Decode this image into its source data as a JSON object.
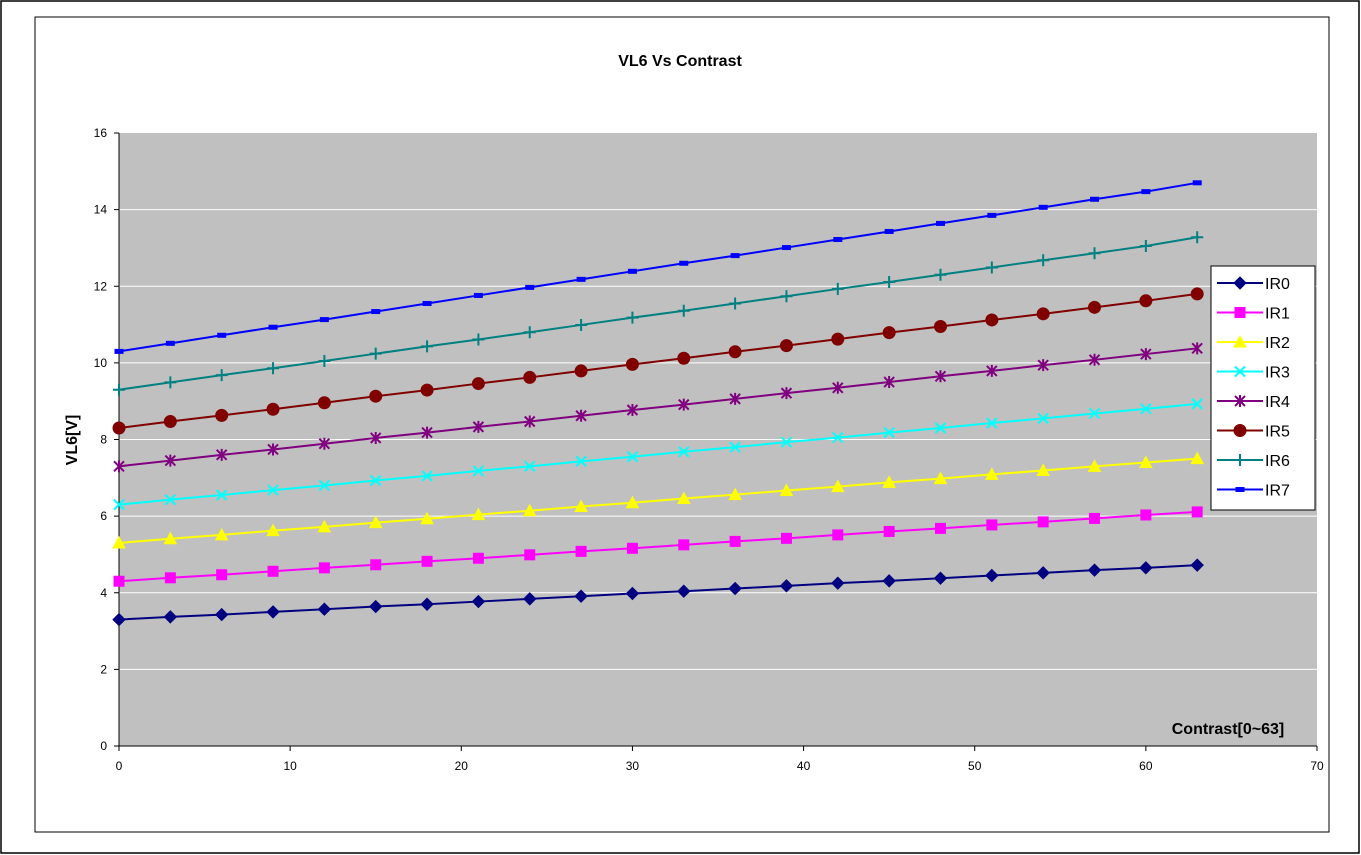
{
  "colors": {
    "plot_background": "#C0C0C0",
    "gridline": "#FFFFFF",
    "frame": "#000000"
  },
  "chart_data": {
    "type": "line",
    "title": "VL6 Vs Contrast",
    "xlabel": "Contrast[0~63]",
    "ylabel": "VL6[V]",
    "xlim": [
      0,
      70
    ],
    "ylim": [
      0,
      16
    ],
    "xticks": [
      0,
      10,
      20,
      30,
      40,
      50,
      60,
      70
    ],
    "yticks": [
      0,
      2,
      4,
      6,
      8,
      10,
      12,
      14,
      16
    ],
    "grid": "horizontal",
    "legend_position": "right",
    "x": [
      0,
      3,
      6,
      9,
      12,
      15,
      18,
      21,
      24,
      27,
      30,
      33,
      36,
      39,
      42,
      45,
      48,
      51,
      54,
      57,
      60,
      63
    ],
    "series": [
      {
        "name": "IR0",
        "color": "#000080",
        "marker": "diamond",
        "values": [
          3.3,
          3.37,
          3.43,
          3.5,
          3.57,
          3.64,
          3.7,
          3.77,
          3.84,
          3.91,
          3.98,
          4.04,
          4.11,
          4.18,
          4.25,
          4.31,
          4.38,
          4.45,
          4.52,
          4.59,
          4.65,
          4.72
        ]
      },
      {
        "name": "IR1",
        "color": "#FF00FF",
        "marker": "square",
        "values": [
          4.3,
          4.39,
          4.47,
          4.56,
          4.65,
          4.73,
          4.82,
          4.9,
          4.99,
          5.08,
          5.16,
          5.25,
          5.34,
          5.42,
          5.51,
          5.6,
          5.68,
          5.77,
          5.85,
          5.94,
          6.03,
          6.11
        ]
      },
      {
        "name": "IR2",
        "color": "#FFFF00",
        "marker": "triangle",
        "values": [
          5.3,
          5.41,
          5.51,
          5.62,
          5.72,
          5.83,
          5.93,
          6.04,
          6.14,
          6.25,
          6.35,
          6.46,
          6.56,
          6.67,
          6.77,
          6.88,
          6.98,
          7.09,
          7.19,
          7.3,
          7.4,
          7.5
        ]
      },
      {
        "name": "IR3",
        "color": "#00FFFF",
        "marker": "x",
        "values": [
          6.3,
          6.43,
          6.55,
          6.68,
          6.8,
          6.93,
          7.05,
          7.18,
          7.3,
          7.43,
          7.55,
          7.68,
          7.8,
          7.93,
          8.05,
          8.18,
          8.3,
          8.43,
          8.55,
          8.68,
          8.8,
          8.93
        ]
      },
      {
        "name": "IR4",
        "color": "#800080",
        "marker": "asterisk",
        "values": [
          7.3,
          7.45,
          7.6,
          7.74,
          7.89,
          8.04,
          8.18,
          8.33,
          8.47,
          8.62,
          8.77,
          8.91,
          9.06,
          9.21,
          9.35,
          9.5,
          9.65,
          9.79,
          9.94,
          10.08,
          10.23,
          10.38
        ]
      },
      {
        "name": "IR5",
        "color": "#800000",
        "marker": "circle",
        "values": [
          8.3,
          8.47,
          8.63,
          8.79,
          8.96,
          9.13,
          9.29,
          9.46,
          9.62,
          9.79,
          9.96,
          10.12,
          10.29,
          10.45,
          10.62,
          10.79,
          10.95,
          11.12,
          11.28,
          11.45,
          11.62,
          11.8
        ]
      },
      {
        "name": "IR6",
        "color": "#008080",
        "marker": "plus",
        "values": [
          9.3,
          9.49,
          9.68,
          9.86,
          10.05,
          10.24,
          10.43,
          10.61,
          10.8,
          10.99,
          11.18,
          11.36,
          11.55,
          11.74,
          11.93,
          12.11,
          12.3,
          12.49,
          12.68,
          12.86,
          13.05,
          13.28
        ]
      },
      {
        "name": "IR7",
        "color": "#0000FF",
        "marker": "dash",
        "values": [
          10.3,
          10.51,
          10.72,
          10.93,
          11.13,
          11.34,
          11.55,
          11.76,
          11.97,
          12.18,
          12.39,
          12.6,
          12.8,
          13.01,
          13.22,
          13.43,
          13.64,
          13.85,
          14.06,
          14.27,
          14.47,
          14.7
        ]
      }
    ]
  }
}
